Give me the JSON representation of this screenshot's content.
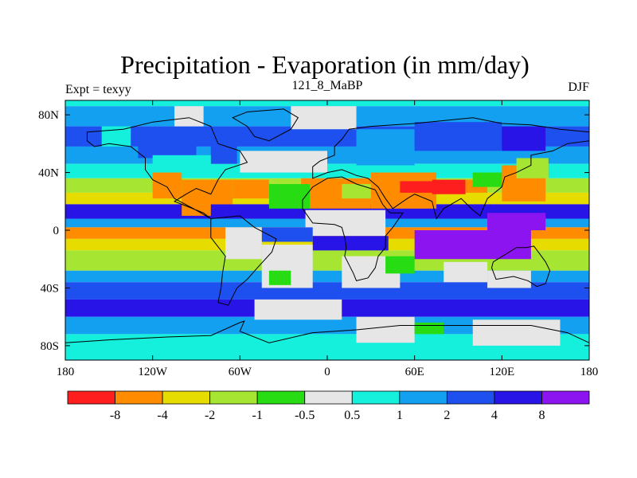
{
  "chart_data": {
    "type": "heatmap",
    "title": "Precipitation - Evaporation (in mm/day)",
    "left_label": "Expt = texyy",
    "center_label": "121_8_MaBP",
    "right_label": "DJF",
    "x_ticks": [
      {
        "value": -180,
        "label": "180"
      },
      {
        "value": -120,
        "label": "120W"
      },
      {
        "value": -60,
        "label": "60W"
      },
      {
        "value": 0,
        "label": "0"
      },
      {
        "value": 60,
        "label": "60E"
      },
      {
        "value": 120,
        "label": "120E"
      },
      {
        "value": 180,
        "label": "180"
      }
    ],
    "y_ticks": [
      {
        "value": 80,
        "label": "80N"
      },
      {
        "value": 40,
        "label": "40N"
      },
      {
        "value": 0,
        "label": "0"
      },
      {
        "value": -40,
        "label": "40S"
      },
      {
        "value": -80,
        "label": "80S"
      }
    ],
    "xlim": [
      -180,
      180
    ],
    "ylim": [
      -90,
      90
    ],
    "colorbar": {
      "colors": [
        "#ff1e1e",
        "#ff8c00",
        "#e6dc00",
        "#a6e632",
        "#28dc14",
        "#e6e6e6",
        "#14f0dc",
        "#14a0f0",
        "#1e50f0",
        "#2814e6",
        "#8c14f0"
      ],
      "labels": [
        "-8",
        "-4",
        "-2",
        "-1",
        "-0.5",
        "0.5",
        "1",
        "2",
        "4",
        "8"
      ]
    },
    "bands": [
      {
        "lat": [
          86,
          90
        ],
        "cls": 6
      },
      {
        "lat": [
          72,
          86
        ],
        "cls": 7
      },
      {
        "lat": [
          58,
          72
        ],
        "cls": 8
      },
      {
        "lat": [
          46,
          58
        ],
        "cls": 7
      },
      {
        "lat": [
          36,
          46
        ],
        "cls": 6
      },
      {
        "lat": [
          26,
          36
        ],
        "cls": 3
      },
      {
        "lat": [
          18,
          26
        ],
        "cls": 2
      },
      {
        "lat": [
          8,
          18
        ],
        "cls": 9
      },
      {
        "lat": [
          2,
          8
        ],
        "cls": 7
      },
      {
        "lat": [
          -6,
          2
        ],
        "cls": 1
      },
      {
        "lat": [
          -14,
          -6
        ],
        "cls": 2
      },
      {
        "lat": [
          -28,
          -14
        ],
        "cls": 3
      },
      {
        "lat": [
          -36,
          -28
        ],
        "cls": 7
      },
      {
        "lat": [
          -48,
          -36
        ],
        "cls": 8
      },
      {
        "lat": [
          -60,
          -48
        ],
        "cls": 9
      },
      {
        "lat": [
          -72,
          -60
        ],
        "cls": 7
      },
      {
        "lat": [
          -90,
          -72
        ],
        "cls": 6
      }
    ],
    "regions": [
      {
        "lon": [
          -105,
          -85
        ],
        "lat": [
          72,
          86
        ],
        "cls": 5
      },
      {
        "lon": [
          -25,
          20
        ],
        "lat": [
          70,
          86
        ],
        "cls": 5
      },
      {
        "lon": [
          -130,
          -90
        ],
        "lat": [
          50,
          66
        ],
        "cls": 8
      },
      {
        "lon": [
          -80,
          -62
        ],
        "lat": [
          46,
          70
        ],
        "cls": 8
      },
      {
        "lon": [
          -155,
          -135
        ],
        "lat": [
          58,
          72
        ],
        "cls": 6
      },
      {
        "lon": [
          -120,
          -80
        ],
        "lat": [
          42,
          52
        ],
        "cls": 6
      },
      {
        "lon": [
          -60,
          0
        ],
        "lat": [
          40,
          55
        ],
        "cls": 5
      },
      {
        "lon": [
          20,
          60
        ],
        "lat": [
          45,
          70
        ],
        "cls": 7
      },
      {
        "lon": [
          60,
          120
        ],
        "lat": [
          55,
          75
        ],
        "cls": 8
      },
      {
        "lon": [
          120,
          150
        ],
        "lat": [
          55,
          72
        ],
        "cls": 9
      },
      {
        "lon": [
          -120,
          -100
        ],
        "lat": [
          22,
          40
        ],
        "cls": 1
      },
      {
        "lon": [
          -100,
          -65
        ],
        "lat": [
          18,
          35
        ],
        "cls": 1
      },
      {
        "lon": [
          -65,
          -40
        ],
        "lat": [
          22,
          35
        ],
        "cls": 1
      },
      {
        "lon": [
          -100,
          -80
        ],
        "lat": [
          10,
          18
        ],
        "cls": 1
      },
      {
        "lon": [
          -18,
          30
        ],
        "lat": [
          15,
          36
        ],
        "cls": 1
      },
      {
        "lon": [
          -40,
          -12
        ],
        "lat": [
          15,
          32
        ],
        "cls": 4
      },
      {
        "lon": [
          10,
          35
        ],
        "lat": [
          22,
          32
        ],
        "cls": 3
      },
      {
        "lon": [
          30,
          75
        ],
        "lat": [
          15,
          40
        ],
        "cls": 1
      },
      {
        "lon": [
          50,
          80
        ],
        "lat": [
          26,
          34
        ],
        "cls": 0
      },
      {
        "lon": [
          72,
          95
        ],
        "lat": [
          25,
          35
        ],
        "cls": 0
      },
      {
        "lon": [
          95,
          110
        ],
        "lat": [
          26,
          35
        ],
        "cls": 1
      },
      {
        "lon": [
          100,
          120
        ],
        "lat": [
          30,
          40
        ],
        "cls": 4
      },
      {
        "lon": [
          120,
          150
        ],
        "lat": [
          20,
          45
        ],
        "cls": 1
      },
      {
        "lon": [
          130,
          152
        ],
        "lat": [
          36,
          50
        ],
        "cls": 3
      },
      {
        "lon": [
          -15,
          40
        ],
        "lat": [
          -4,
          14
        ],
        "cls": 5
      },
      {
        "lon": [
          -10,
          42
        ],
        "lat": [
          -14,
          -4
        ],
        "cls": 9
      },
      {
        "lon": [
          -45,
          -10
        ],
        "lat": [
          -8,
          2
        ],
        "cls": 8
      },
      {
        "lon": [
          60,
          140
        ],
        "lat": [
          -20,
          0
        ],
        "cls": 10
      },
      {
        "lon": [
          110,
          150
        ],
        "lat": [
          0,
          12
        ],
        "cls": 10
      },
      {
        "lon": [
          -70,
          -45
        ],
        "lat": [
          -20,
          2
        ],
        "cls": 5
      },
      {
        "lon": [
          -45,
          -10
        ],
        "lat": [
          -40,
          -10
        ],
        "cls": 5
      },
      {
        "lon": [
          -40,
          -25
        ],
        "lat": [
          -38,
          -28
        ],
        "cls": 4
      },
      {
        "lon": [
          10,
          50
        ],
        "lat": [
          -40,
          -18
        ],
        "cls": 5
      },
      {
        "lon": [
          40,
          60
        ],
        "lat": [
          -30,
          -18
        ],
        "cls": 4
      },
      {
        "lon": [
          80,
          110
        ],
        "lat": [
          -36,
          -22
        ],
        "cls": 5
      },
      {
        "lon": [
          110,
          140
        ],
        "lat": [
          -40,
          -28
        ],
        "cls": 5
      },
      {
        "lon": [
          -50,
          10
        ],
        "lat": [
          -62,
          -48
        ],
        "cls": 5
      },
      {
        "lon": [
          20,
          60
        ],
        "lat": [
          -78,
          -60
        ],
        "cls": 5
      },
      {
        "lon": [
          60,
          80
        ],
        "lat": [
          -72,
          -64
        ],
        "cls": 4
      },
      {
        "lon": [
          100,
          160
        ],
        "lat": [
          -80,
          -62
        ],
        "cls": 5
      }
    ],
    "land": [
      {
        "name": "north-america",
        "points": [
          [
            -165,
            68
          ],
          [
            -140,
            70
          ],
          [
            -120,
            75
          ],
          [
            -95,
            78
          ],
          [
            -80,
            72
          ],
          [
            -75,
            60
          ],
          [
            -60,
            55
          ],
          [
            -55,
            47
          ],
          [
            -70,
            42
          ],
          [
            -75,
            35
          ],
          [
            -80,
            25
          ],
          [
            -90,
            29
          ],
          [
            -97,
            25
          ],
          [
            -105,
            20
          ],
          [
            -95,
            16
          ],
          [
            -85,
            12
          ],
          [
            -80,
            8
          ],
          [
            -92,
            15
          ],
          [
            -105,
            22
          ],
          [
            -110,
            30
          ],
          [
            -120,
            35
          ],
          [
            -125,
            42
          ],
          [
            -125,
            50
          ],
          [
            -135,
            58
          ],
          [
            -150,
            60
          ],
          [
            -160,
            58
          ],
          [
            -165,
            62
          ]
        ]
      },
      {
        "name": "greenland",
        "points": [
          [
            -55,
            82
          ],
          [
            -30,
            84
          ],
          [
            -20,
            78
          ],
          [
            -25,
            70
          ],
          [
            -40,
            62
          ],
          [
            -50,
            65
          ],
          [
            -55,
            72
          ],
          [
            -65,
            78
          ]
        ]
      },
      {
        "name": "south-america",
        "points": [
          [
            -80,
            8
          ],
          [
            -60,
            10
          ],
          [
            -50,
            2
          ],
          [
            -35,
            -6
          ],
          [
            -38,
            -15
          ],
          [
            -48,
            -26
          ],
          [
            -55,
            -34
          ],
          [
            -62,
            -40
          ],
          [
            -68,
            -52
          ],
          [
            -75,
            -50
          ],
          [
            -73,
            -40
          ],
          [
            -72,
            -30
          ],
          [
            -70,
            -18
          ],
          [
            -80,
            -5
          ]
        ]
      },
      {
        "name": "eurasia",
        "points": [
          [
            -10,
            36
          ],
          [
            -10,
            44
          ],
          [
            -5,
            48
          ],
          [
            5,
            52
          ],
          [
            5,
            58
          ],
          [
            10,
            63
          ],
          [
            15,
            70
          ],
          [
            30,
            72
          ],
          [
            60,
            74
          ],
          [
            80,
            76
          ],
          [
            100,
            78
          ],
          [
            120,
            74
          ],
          [
            140,
            73
          ],
          [
            160,
            70
          ],
          [
            180,
            68
          ],
          [
            180,
            62
          ],
          [
            165,
            60
          ],
          [
            155,
            55
          ],
          [
            140,
            52
          ],
          [
            140,
            45
          ],
          [
            130,
            40
          ],
          [
            122,
            37
          ],
          [
            120,
            30
          ],
          [
            110,
            22
          ],
          [
            105,
            10
          ],
          [
            100,
            14
          ],
          [
            92,
            22
          ],
          [
            80,
            15
          ],
          [
            75,
            8
          ],
          [
            72,
            20
          ],
          [
            60,
            25
          ],
          [
            55,
            22
          ],
          [
            45,
            15
          ],
          [
            40,
            22
          ],
          [
            35,
            30
          ],
          [
            28,
            36
          ],
          [
            20,
            38
          ],
          [
            10,
            42
          ],
          [
            0,
            40
          ]
        ]
      },
      {
        "name": "africa",
        "points": [
          [
            -17,
            21
          ],
          [
            -17,
            15
          ],
          [
            -10,
            5
          ],
          [
            5,
            4
          ],
          [
            10,
            2
          ],
          [
            12,
            -5
          ],
          [
            13,
            -12
          ],
          [
            12,
            -18
          ],
          [
            18,
            -30
          ],
          [
            20,
            -35
          ],
          [
            28,
            -33
          ],
          [
            33,
            -26
          ],
          [
            35,
            -18
          ],
          [
            40,
            -12
          ],
          [
            40,
            -4
          ],
          [
            45,
            2
          ],
          [
            52,
            12
          ],
          [
            43,
            12
          ],
          [
            38,
            18
          ],
          [
            33,
            28
          ],
          [
            20,
            32
          ],
          [
            10,
            37
          ],
          [
            0,
            36
          ],
          [
            -10,
            30
          ]
        ]
      },
      {
        "name": "australia",
        "points": [
          [
            114,
            -22
          ],
          [
            122,
            -17
          ],
          [
            130,
            -12
          ],
          [
            137,
            -12
          ],
          [
            142,
            -11
          ],
          [
            145,
            -15
          ],
          [
            150,
            -22
          ],
          [
            153,
            -28
          ],
          [
            150,
            -37
          ],
          [
            144,
            -39
          ],
          [
            138,
            -35
          ],
          [
            128,
            -32
          ],
          [
            116,
            -34
          ],
          [
            113,
            -26
          ]
        ]
      },
      {
        "name": "antarctica",
        "points": [
          [
            -180,
            -78
          ],
          [
            -150,
            -76
          ],
          [
            -110,
            -74
          ],
          [
            -80,
            -73
          ],
          [
            -60,
            -64
          ],
          [
            -57,
            -63
          ],
          [
            -60,
            -70
          ],
          [
            -40,
            -78
          ],
          [
            -10,
            -71
          ],
          [
            20,
            -69
          ],
          [
            50,
            -66
          ],
          [
            80,
            -66
          ],
          [
            110,
            -66
          ],
          [
            140,
            -66
          ],
          [
            165,
            -71
          ],
          [
            180,
            -78
          ],
          [
            180,
            -90
          ],
          [
            -180,
            -90
          ]
        ]
      }
    ]
  }
}
